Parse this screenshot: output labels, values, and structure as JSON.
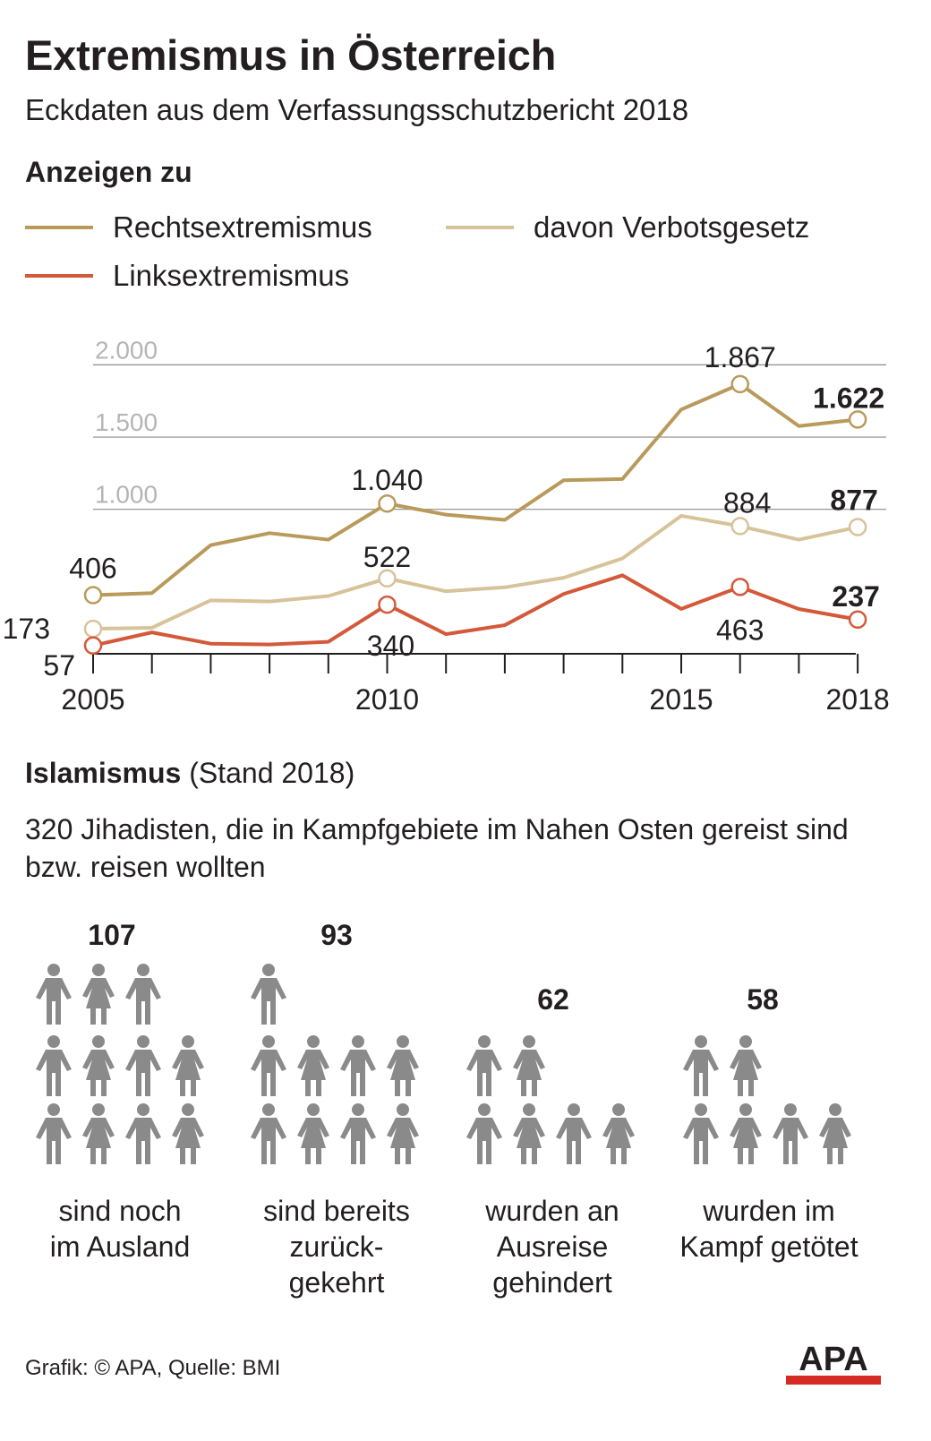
{
  "title": "Extremismus in Österreich",
  "subtitle": "Eckdaten aus dem Verfassungsschutzbericht 2018",
  "section_reports": "Anzeigen zu",
  "legend": [
    {
      "label": "Rechtsextremismus",
      "color": "#b99a5b"
    },
    {
      "label": "davon Verbotsgesetz",
      "color": "#d7c39a"
    },
    {
      "label": "Linksextremismus",
      "color": "#d4593a"
    }
  ],
  "chart_data": {
    "type": "line",
    "x": [
      2005,
      2006,
      2007,
      2008,
      2009,
      2010,
      2011,
      2012,
      2013,
      2014,
      2015,
      2016,
      2017,
      2018
    ],
    "x_tick_labels": [
      "2005",
      "2010",
      "2015",
      "2018"
    ],
    "y_tick_labels": [
      "1.000",
      "1.500",
      "2.000"
    ],
    "ylim": [
      0,
      2000
    ],
    "series": [
      {
        "name": "Rechtsextremismus",
        "color": "#b99a5b",
        "values": [
          406,
          420,
          752,
          835,
          790,
          1040,
          963,
          927,
          1201,
          1210,
          1691,
          1867,
          1576,
          1622
        ]
      },
      {
        "name": "davon Verbotsgesetz",
        "color": "#d7c39a",
        "values": [
          173,
          180,
          370,
          362,
          400,
          522,
          433,
          460,
          526,
          660,
          955,
          884,
          790,
          877
        ]
      },
      {
        "name": "Linksextremismus",
        "color": "#d4593a",
        "values": [
          57,
          148,
          70,
          64,
          83,
          340,
          136,
          198,
          414,
          543,
          311,
          463,
          310,
          237
        ]
      }
    ],
    "data_labels": [
      {
        "series": 0,
        "index": 0,
        "text": "406",
        "bold": false
      },
      {
        "series": 0,
        "index": 5,
        "text": "1.040",
        "bold": false
      },
      {
        "series": 0,
        "index": 11,
        "text": "1.867",
        "bold": false
      },
      {
        "series": 0,
        "index": 13,
        "text": "1.622",
        "bold": true
      },
      {
        "series": 1,
        "index": 0,
        "text": "173",
        "bold": false
      },
      {
        "series": 1,
        "index": 5,
        "text": "522",
        "bold": false
      },
      {
        "series": 1,
        "index": 11,
        "text": "884",
        "bold": false
      },
      {
        "series": 1,
        "index": 13,
        "text": "877",
        "bold": true
      },
      {
        "series": 2,
        "index": 0,
        "text": "57",
        "bold": false
      },
      {
        "series": 2,
        "index": 5,
        "text": "340",
        "bold": false
      },
      {
        "series": 2,
        "index": 11,
        "text": "463",
        "bold": false
      },
      {
        "series": 2,
        "index": 13,
        "text": "237",
        "bold": true
      }
    ],
    "grid": true
  },
  "islamism": {
    "heading": "Islamismus",
    "heading_note": "(Stand 2018)",
    "description": "320 Jihadisten, die in Kampfgebiete im Nahen Osten gereist sind bzw. reisen wollten",
    "icon_color": "#8a8a8a",
    "groups": [
      {
        "value": "107",
        "label": "sind noch\nim Ausland"
      },
      {
        "value": "93",
        "label": "sind bereits\nzurück-\ngekehrt"
      },
      {
        "value": "62",
        "label": "wurden an\nAusreise\ngehindert"
      },
      {
        "value": "58",
        "label": "wurden im\nKampf getötet"
      }
    ]
  },
  "credit": "Grafik: © APA, Quelle: BMI",
  "logo": "APA"
}
